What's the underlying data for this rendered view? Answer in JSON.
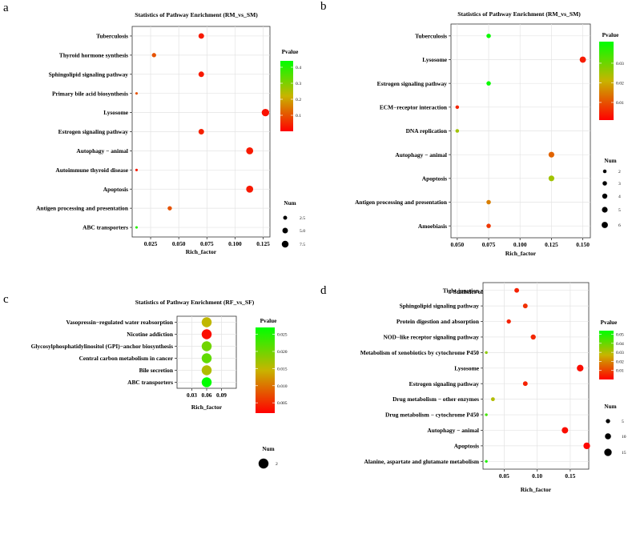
{
  "colors": {
    "low": "#ff0000",
    "mid": "#c8b400",
    "high": "#00ff00",
    "grid": "#e3e3e3",
    "axis": "#333333"
  },
  "chart_data": [
    {
      "panel_label": "a",
      "type": "scatter",
      "title": "Statistics of Pathway Enrichment (RM_vs_SM)",
      "xlabel": "Rich_factor",
      "ylabel": "",
      "xlim": [
        0.0086,
        0.131
      ],
      "xticks": [
        "0.025",
        "0.050",
        "0.075",
        "0.100",
        "0.125"
      ],
      "xtick_values": [
        0.025,
        0.05,
        0.075,
        0.1,
        0.125
      ],
      "categories": [
        "Tuberculosis",
        "Thyroid hormone synthesis",
        "Sphingolipid signaling pathway",
        "Primary bile acid biosynthesis",
        "Lysosome",
        "Estrogen signaling pathway",
        "Autophagy − animal",
        "Autoimmune thyroid disease",
        "Apoptosis",
        "Antigen processing and presentation",
        "ABC transporters"
      ],
      "x": [
        0.07,
        0.028,
        0.07,
        0.0125,
        0.127,
        0.07,
        0.113,
        0.0125,
        0.113,
        0.042,
        0.0125
      ],
      "num": [
        5,
        3,
        5,
        1,
        9,
        5,
        8,
        1,
        8,
        3,
        1
      ],
      "pvalue": [
        0.03,
        0.1,
        0.03,
        0.1,
        0.02,
        0.04,
        0.03,
        0.03,
        0.03,
        0.1,
        0.4
      ],
      "color_legend": {
        "title": "Pvalue",
        "range": [
          0.0,
          0.44
        ],
        "ticks": [
          "0.1",
          "0.2",
          "0.3",
          "0.4"
        ],
        "tick_values": [
          0.1,
          0.2,
          0.3,
          0.4
        ]
      },
      "size_legend": {
        "title": "Num",
        "labels": [
          "2.5",
          "5.0",
          "7.5"
        ],
        "values": [
          2.5,
          5.0,
          7.5
        ],
        "scale": 1.55
      }
    },
    {
      "panel_label": "b",
      "type": "scatter",
      "title": "Statistics of Pathway Enrichment (RM_vs_SM)",
      "xlabel": "Rich_factor",
      "ylabel": "",
      "xlim": [
        0.045,
        0.156
      ],
      "xticks": [
        "0.050",
        "0.075",
        "0.100",
        "0.125",
        "0.150"
      ],
      "xtick_values": [
        0.05,
        0.075,
        0.1,
        0.125,
        0.15
      ],
      "categories": [
        "Tuberculosis",
        "Lysosome",
        "Estrogen signaling pathway",
        "ECM−receptor interaction",
        "DNA replication",
        "Autophagy − animal",
        "Apoptosis",
        "Antigen processing and presentation",
        "Amoebiasis"
      ],
      "x": [
        0.075,
        0.15,
        0.075,
        0.05,
        0.05,
        0.125,
        0.125,
        0.075,
        0.075
      ],
      "num": [
        3,
        6,
        3,
        2,
        2,
        5,
        5,
        3,
        3
      ],
      "pvalue": [
        0.04,
        0.004,
        0.04,
        0.005,
        0.025,
        0.012,
        0.025,
        0.015,
        0.007
      ],
      "color_legend": {
        "title": "Pvalue",
        "range": [
          0.001,
          0.041
        ],
        "ticks": [
          "0.01",
          "0.02",
          "0.03"
        ],
        "tick_values": [
          0.01,
          0.02,
          0.03
        ]
      },
      "size_legend": {
        "title": "Num",
        "labels": [
          "2",
          "3",
          "4",
          "5",
          "6"
        ],
        "values": [
          2,
          3,
          4,
          5,
          6
        ],
        "scale": 1.6
      }
    },
    {
      "panel_label": "c",
      "type": "scatter",
      "title": "Statistics of Pathway Enrichment (RF_vs_SF)",
      "xlabel": "Rich_factor",
      "ylabel": "",
      "xlim": [
        0.0,
        0.12
      ],
      "xticks": [
        "0.03",
        "0.06",
        "0.09"
      ],
      "xtick_values": [
        0.03,
        0.06,
        0.09
      ],
      "categories": [
        "Vasopressin−regulated water reabsorption",
        "Nicotine addiction",
        "Glycosylphosphatidylinositol (GPI)−anchor biosynthesis",
        "Central carbon metabolism in cancer",
        "Bile secretion",
        "ABC transporters"
      ],
      "x": [
        0.06,
        0.06,
        0.06,
        0.06,
        0.06,
        0.06
      ],
      "num": [
        2,
        2,
        2,
        2,
        2,
        2
      ],
      "pvalue": [
        0.015,
        0.003,
        0.02,
        0.021,
        0.016,
        0.027
      ],
      "color_legend": {
        "title": "Pvalue",
        "range": [
          0.002,
          0.027
        ],
        "ticks": [
          "0.005",
          "0.010",
          "0.015",
          "0.020",
          "0.025"
        ],
        "tick_values": [
          0.005,
          0.01,
          0.015,
          0.02,
          0.025
        ]
      },
      "size_legend": {
        "title": "Num",
        "labels": [
          "2"
        ],
        "values": [
          2
        ],
        "scale": 4.4
      }
    },
    {
      "panel_label": "d",
      "type": "scatter",
      "title": "Statistics of Pathway Enrichment (RF_vs_SF)",
      "xlabel": "Rich_factor",
      "ylabel": "",
      "xlim": [
        0.018,
        0.178
      ],
      "xticks": [
        "0.05",
        "0.10",
        "0.15"
      ],
      "xtick_values": [
        0.05,
        0.1,
        0.15
      ],
      "categories": [
        "Tight junction",
        "Sphingolipid signaling pathway",
        "Protein digestion and absorption",
        "NOD−like receptor signaling pathway",
        "Metabolism of xenobiotics by cytochrome P450",
        "Lysosome",
        "Estrogen signaling pathway",
        "Drug metabolism − other enzymes",
        "Drug metabolism − cytochrome P450",
        "Autophagy − animal",
        "Apoptosis",
        "Alanine, aspartate and glutamate metabolism"
      ],
      "x": [
        0.069,
        0.082,
        0.057,
        0.094,
        0.023,
        0.165,
        0.082,
        0.033,
        0.023,
        0.142,
        0.175,
        0.023
      ],
      "num": [
        6,
        6,
        5,
        7,
        2,
        12,
        6,
        4,
        2,
        11,
        12,
        2
      ],
      "pvalue": [
        0.005,
        0.007,
        0.005,
        0.006,
        0.035,
        0.002,
        0.005,
        0.03,
        0.045,
        0.002,
        0.001,
        0.05
      ],
      "color_legend": {
        "title": "Pvalue",
        "range": [
          0.0,
          0.054
        ],
        "ticks": [
          "0.01",
          "0.02",
          "0.03",
          "0.04",
          "0.05"
        ],
        "tick_values": [
          0.01,
          0.02,
          0.03,
          0.04,
          0.05
        ]
      },
      "size_legend": {
        "title": "Num",
        "labels": [
          "5",
          "10",
          "15"
        ],
        "values": [
          5,
          10,
          15
        ],
        "scale": 1.2
      }
    }
  ]
}
